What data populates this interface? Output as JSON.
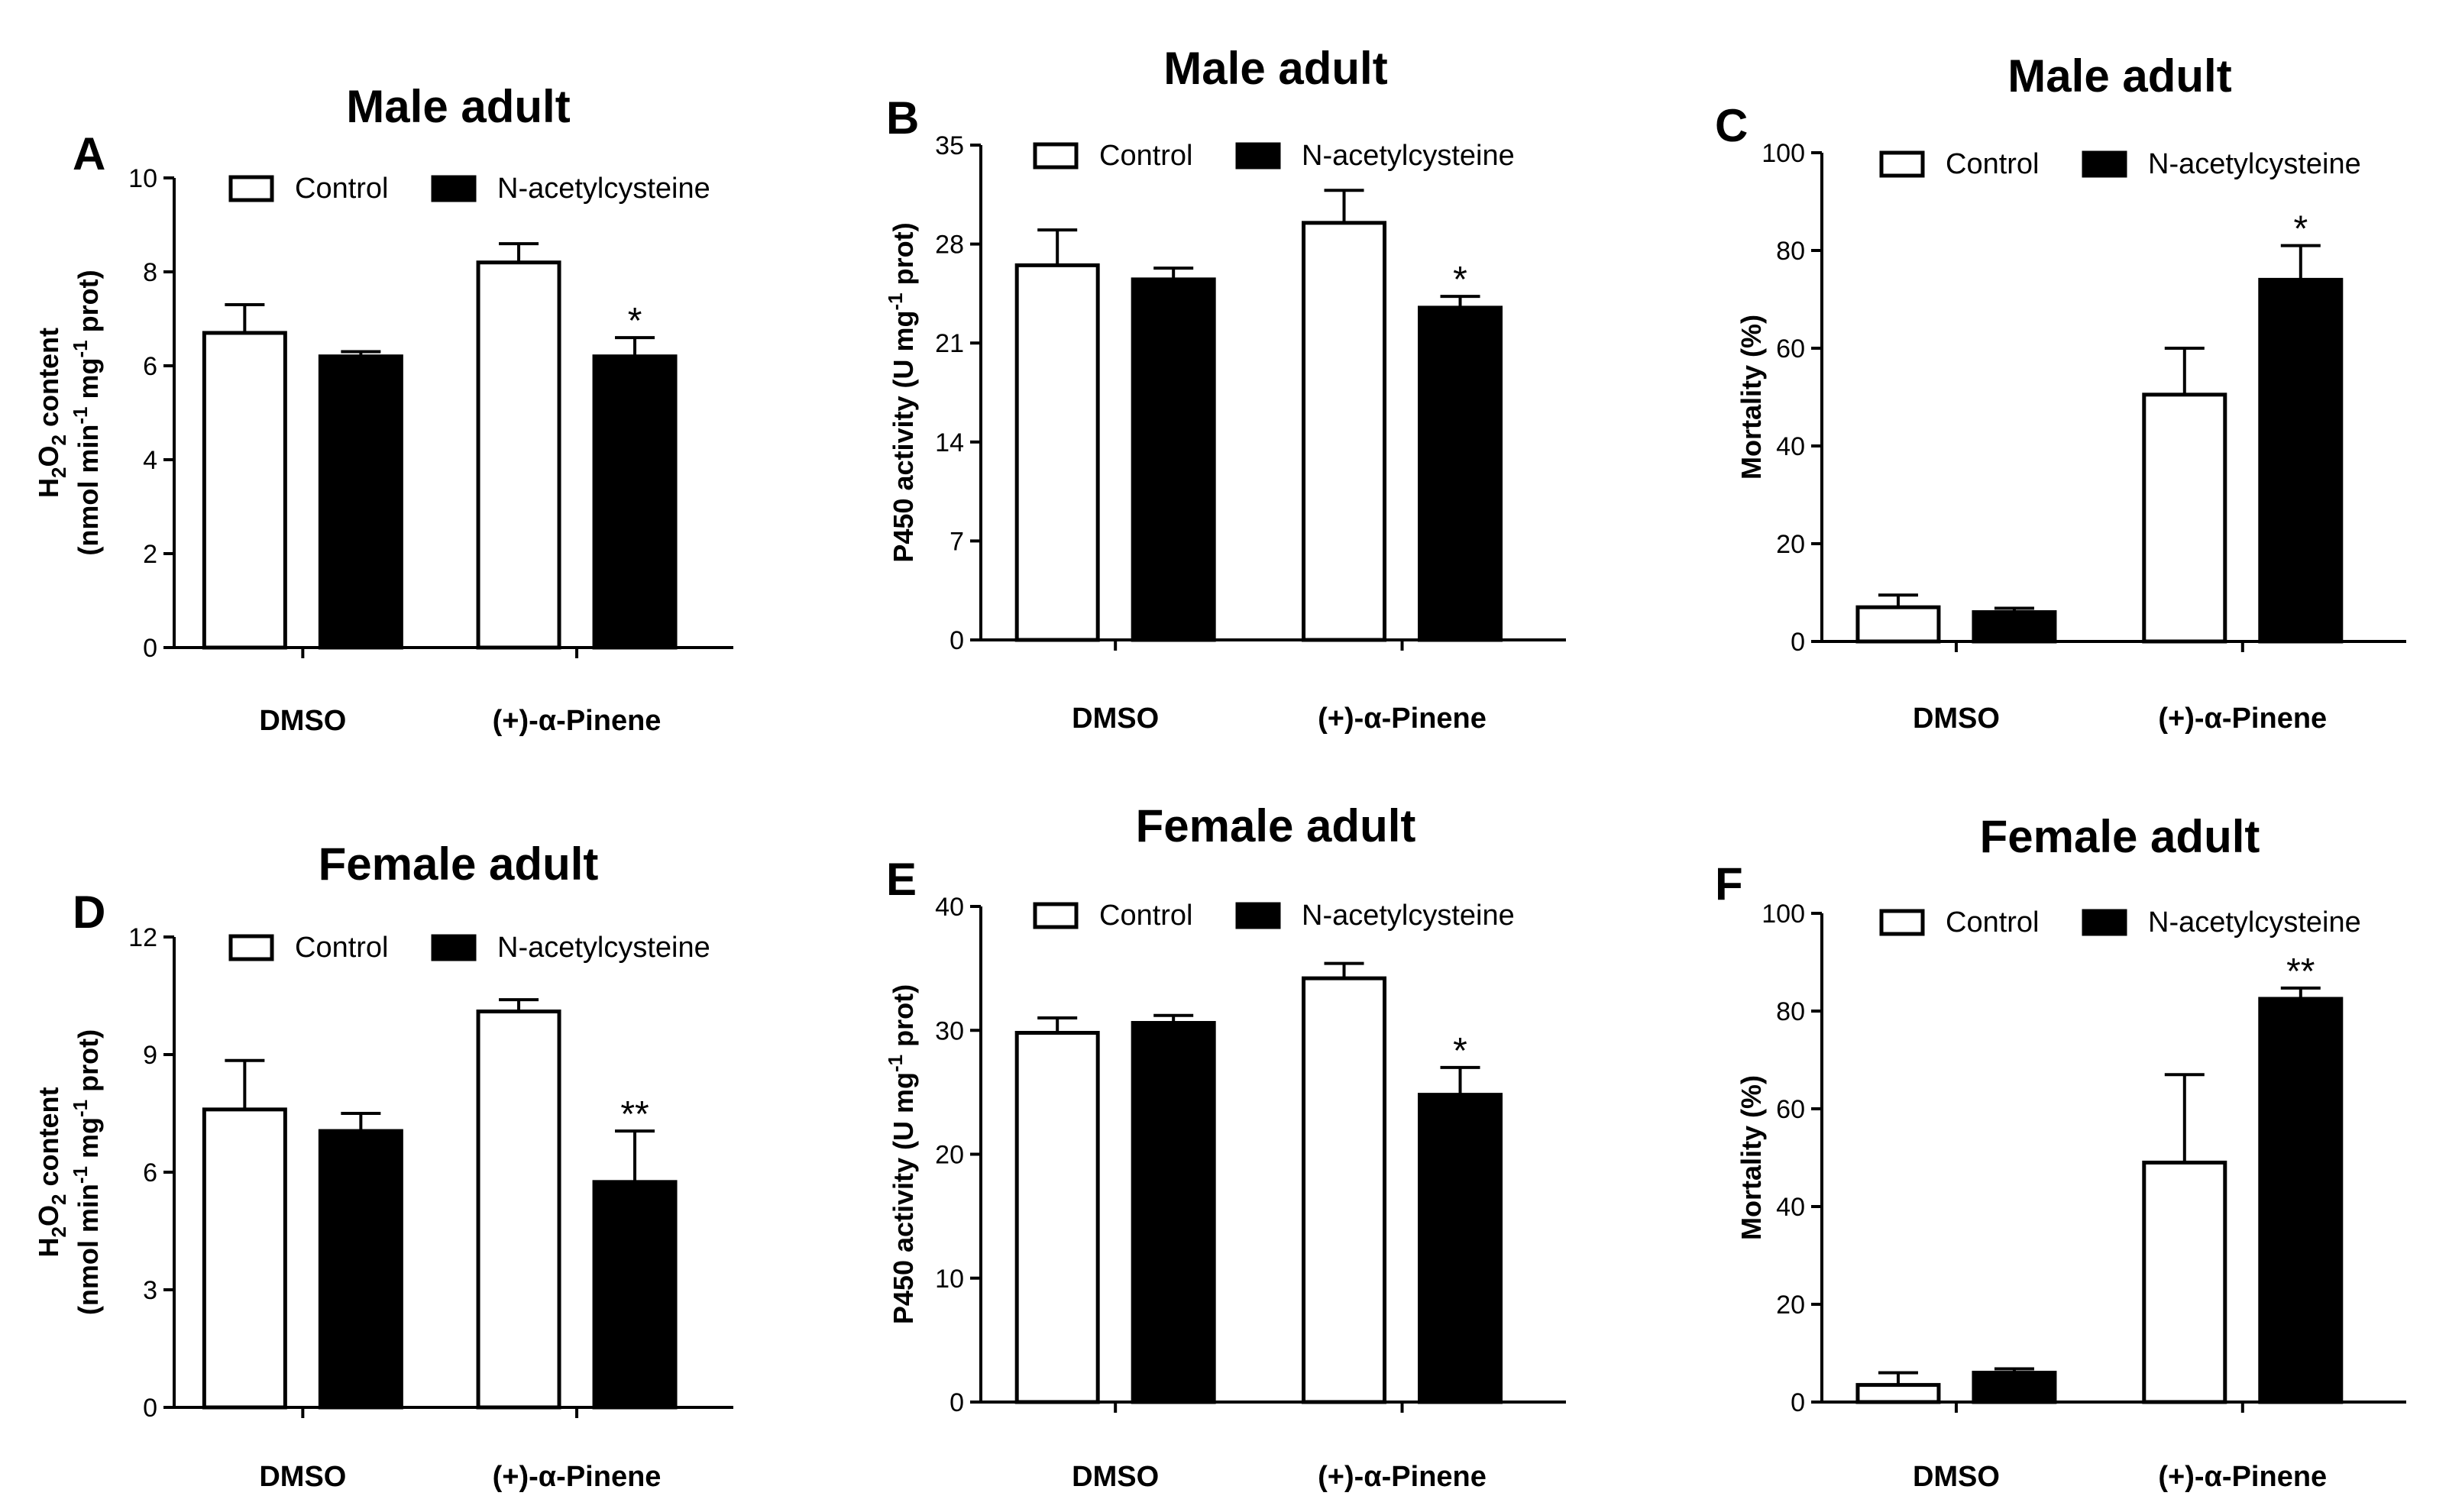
{
  "colors": {
    "control": "#ffffff",
    "treatment": "#000000",
    "axis": "#000000"
  },
  "chart_data": [
    {
      "panel": "A",
      "type": "bar",
      "title": "Male adult",
      "ylabel": {
        "main": "H",
        "sub1": "2",
        "mid": "O",
        "sub2": "2",
        "rest": " content",
        "line2a": "(nmol min",
        "sup1": "-1",
        "line2b": " mg",
        "sup2": "-1",
        "line2c": " prot)"
      },
      "ylim": [
        0,
        10
      ],
      "yticks": [
        0,
        2,
        4,
        6,
        8,
        10
      ],
      "categories": [
        "DMSO",
        "(+)-α-Pinene"
      ],
      "series": [
        {
          "name": "Control",
          "values": [
            6.7,
            8.2
          ],
          "errors": [
            0.6,
            0.4
          ]
        },
        {
          "name": "N-acetylcysteine",
          "values": [
            6.2,
            6.2
          ],
          "errors": [
            0.1,
            0.4
          ]
        }
      ],
      "annotations": [
        "",
        "",
        "",
        "*"
      ]
    },
    {
      "panel": "B",
      "type": "bar",
      "title": "Male adult",
      "ylabel": {
        "main": "P450 activity (U mg",
        "sup1": "-1",
        "rest": " prot)"
      },
      "ylim": [
        0,
        35
      ],
      "yticks": [
        0,
        7,
        14,
        21,
        28,
        35
      ],
      "categories": [
        "DMSO",
        "(+)-α-Pinene"
      ],
      "series": [
        {
          "name": "Control",
          "values": [
            26.5,
            29.5
          ],
          "errors": [
            2.5,
            2.3
          ]
        },
        {
          "name": "N-acetylcysteine",
          "values": [
            25.5,
            23.5
          ],
          "errors": [
            0.8,
            0.8
          ]
        }
      ],
      "annotations": [
        "",
        "",
        "",
        "*"
      ]
    },
    {
      "panel": "C",
      "type": "bar",
      "title": "Male adult",
      "ylabel": {
        "main": "Mortality (%)"
      },
      "ylim": [
        0,
        100
      ],
      "yticks": [
        0,
        20,
        40,
        60,
        80,
        100
      ],
      "categories": [
        "DMSO",
        "(+)-α-Pinene"
      ],
      "series": [
        {
          "name": "Control",
          "values": [
            7,
            50.5
          ],
          "errors": [
            2.5,
            9.5
          ]
        },
        {
          "name": "N-acetylcysteine",
          "values": [
            6,
            74
          ],
          "errors": [
            0.8,
            7
          ]
        }
      ],
      "annotations": [
        "",
        "",
        "",
        "*"
      ]
    },
    {
      "panel": "D",
      "type": "bar",
      "title": "Female adult",
      "ylabel": {
        "main": "H",
        "sub1": "2",
        "mid": "O",
        "sub2": "2",
        "rest": " content",
        "line2a": "(nmol min",
        "sup1": "-1",
        "line2b": " mg",
        "sup2": "-1",
        "line2c": " prot)"
      },
      "ylim": [
        0,
        12
      ],
      "yticks": [
        0,
        3,
        6,
        9,
        12
      ],
      "categories": [
        "DMSO",
        "(+)-α-Pinene"
      ],
      "series": [
        {
          "name": "Control",
          "values": [
            7.6,
            10.1
          ],
          "errors": [
            1.25,
            0.3
          ]
        },
        {
          "name": "N-acetylcysteine",
          "values": [
            7.05,
            5.75
          ],
          "errors": [
            0.45,
            1.3
          ]
        }
      ],
      "annotations": [
        "",
        "",
        "",
        "**"
      ]
    },
    {
      "panel": "E",
      "type": "bar",
      "title": "Female adult",
      "ylabel": {
        "main": "P450 activity (U mg",
        "sup1": "-1",
        "rest": " prot)"
      },
      "ylim": [
        0,
        40
      ],
      "yticks": [
        0,
        10,
        20,
        30,
        40
      ],
      "categories": [
        "DMSO",
        "(+)-α-Pinene"
      ],
      "series": [
        {
          "name": "Control",
          "values": [
            29.8,
            34.2
          ],
          "errors": [
            1.2,
            1.2
          ]
        },
        {
          "name": "N-acetylcysteine",
          "values": [
            30.6,
            24.8
          ],
          "errors": [
            0.6,
            2.2
          ]
        }
      ],
      "annotations": [
        "",
        "",
        "",
        "*"
      ]
    },
    {
      "panel": "F",
      "type": "bar",
      "title": "Female adult",
      "ylabel": {
        "main": "Mortality (%)"
      },
      "ylim": [
        0,
        100
      ],
      "yticks": [
        0,
        20,
        40,
        60,
        80,
        100
      ],
      "categories": [
        "DMSO",
        "(+)-α-Pinene"
      ],
      "series": [
        {
          "name": "Control",
          "values": [
            3.5,
            49
          ],
          "errors": [
            2.5,
            18
          ]
        },
        {
          "name": "N-acetylcysteine",
          "values": [
            6,
            82.5
          ],
          "errors": [
            0.8,
            2.2
          ]
        }
      ],
      "annotations": [
        "",
        "",
        "",
        "**"
      ]
    }
  ]
}
